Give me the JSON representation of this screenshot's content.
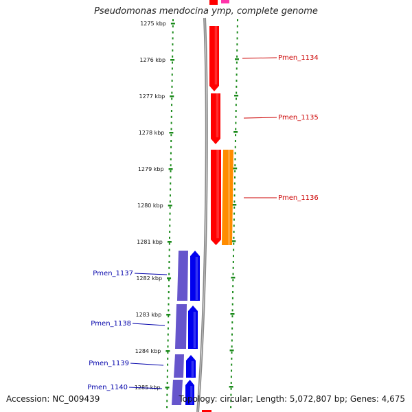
{
  "title": "Pseudomonas mendocina ymp, complete genome",
  "footer": {
    "accession": "Accession: NC_009439",
    "summary": "Topology: circular; Length: 5,072,807 bp; Genes: 4,675"
  },
  "colors": {
    "ruler_dots": "#1a8a1a",
    "backbone": "#888888",
    "forward_gene": "#ff0000",
    "forward_gene_alt": "#ff8c00",
    "top_pink": "#ff33aa",
    "reverse_gene": "#0000ee",
    "reverse_cds": "#6655cc",
    "forward_label": "#cc0000",
    "reverse_label": "#0000aa"
  },
  "ruler_labels": [
    "1275 kbp",
    "1276 kbp",
    "1277 kbp",
    "1278 kbp",
    "1279 kbp",
    "1280 kbp",
    "1281 kbp",
    "1282 kbp",
    "1283 kbp",
    "1284 kbp",
    "1285 kbp"
  ],
  "genes": [
    {
      "id": "g1134",
      "label": "Pmen_1134",
      "strand": "forward"
    },
    {
      "id": "g1135",
      "label": "Pmen_1135",
      "strand": "forward"
    },
    {
      "id": "g1136",
      "label": "Pmen_1136",
      "strand": "forward"
    },
    {
      "id": "g1137",
      "label": "Pmen_1137",
      "strand": "reverse"
    },
    {
      "id": "g1138",
      "label": "Pmen_1138",
      "strand": "reverse"
    },
    {
      "id": "g1139",
      "label": "Pmen_1139",
      "strand": "reverse"
    },
    {
      "id": "g1140",
      "label": "Pmen_1140",
      "strand": "reverse"
    }
  ]
}
